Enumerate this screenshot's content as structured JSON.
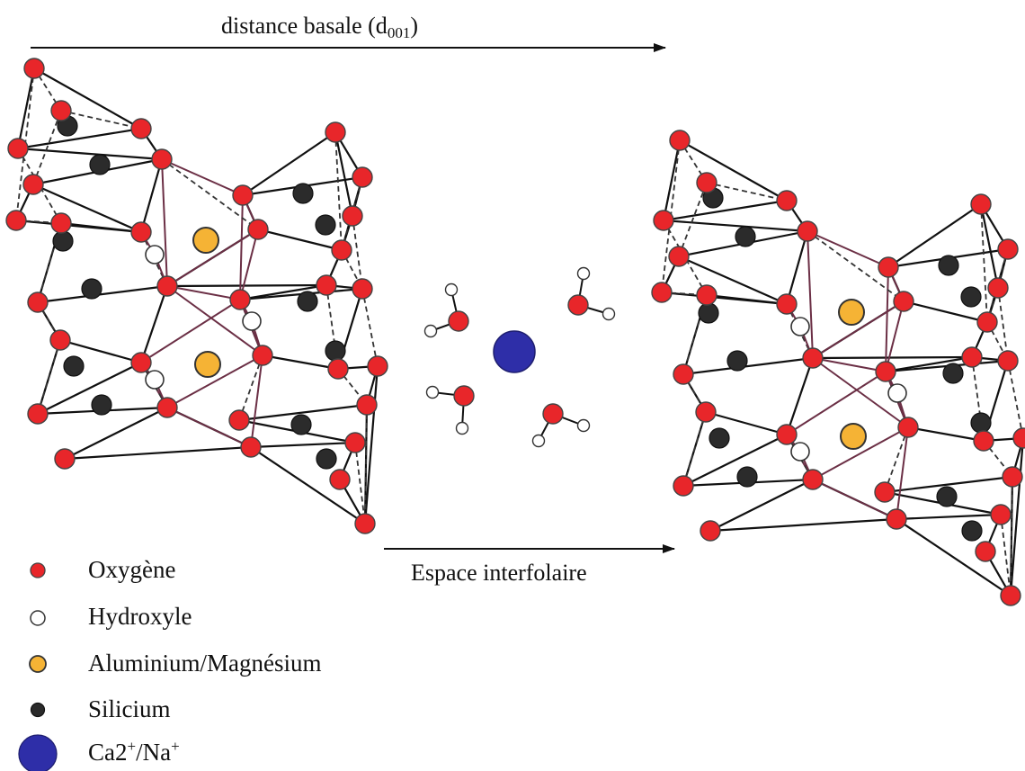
{
  "diagram": {
    "top_arrow": {
      "text": "distance basale (d",
      "subscript": "001",
      "text_end": ")"
    },
    "middle_arrow": {
      "text": "Espace  interfolaire"
    },
    "legend": [
      {
        "key": "oxygen",
        "label": "Oxygène",
        "color": "#e8262a"
      },
      {
        "key": "hydroxyl",
        "label": "Hydroxyle",
        "color": "#ffffff"
      },
      {
        "key": "al_mg",
        "label": "Aluminium/Magnésium",
        "color": "#f5b335"
      },
      {
        "key": "silicon",
        "label": "Silicium",
        "color": "#2b2b2b"
      },
      {
        "key": "cation",
        "label_base": "Ca2",
        "label_sup1": "+",
        "label_mid": "/Na",
        "label_sup2": "+",
        "color": "#2e2ea8"
      }
    ]
  }
}
